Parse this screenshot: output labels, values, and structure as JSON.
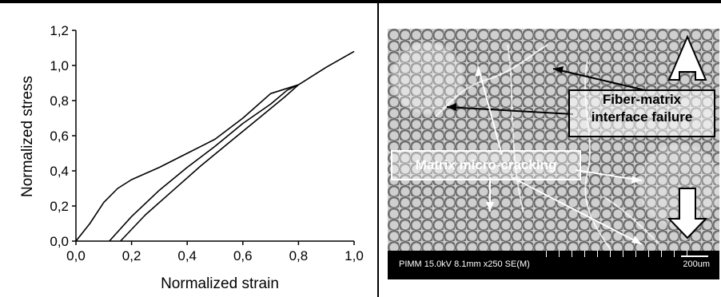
{
  "chart_data": {
    "type": "line",
    "xlabel": "Normalized strain",
    "ylabel": "Normalized stress",
    "xlim": [
      0.0,
      1.0
    ],
    "ylim": [
      0.0,
      1.2
    ],
    "xticks": [
      "0,0",
      "0,2",
      "0,4",
      "0,6",
      "0,8",
      "1,0"
    ],
    "yticks": [
      "0,0",
      "0,2",
      "0,4",
      "0,6",
      "0,8",
      "1,0",
      "1,2"
    ],
    "series": [
      {
        "x": [
          0.0,
          0.05,
          0.1,
          0.15,
          0.2,
          0.3,
          0.4,
          0.5,
          0.6,
          0.7,
          0.8
        ],
        "y": [
          0.0,
          0.1,
          0.22,
          0.3,
          0.35,
          0.42,
          0.5,
          0.58,
          0.7,
          0.84,
          0.89
        ]
      },
      {
        "x": [
          0.12,
          0.2,
          0.3,
          0.4,
          0.5,
          0.6,
          0.7,
          0.76,
          0.8
        ],
        "y": [
          0.0,
          0.14,
          0.29,
          0.42,
          0.54,
          0.67,
          0.78,
          0.86,
          0.89
        ]
      },
      {
        "x": [
          0.16,
          0.25,
          0.35,
          0.45,
          0.55,
          0.65,
          0.75,
          0.8,
          0.85,
          0.9,
          1.0
        ],
        "y": [
          0.0,
          0.15,
          0.29,
          0.43,
          0.56,
          0.69,
          0.82,
          0.89,
          0.94,
          0.99,
          1.08
        ]
      }
    ]
  },
  "micrograph": {
    "info_bar": "PIMM 15.0kV 8.1mm x250 SE(M)",
    "scale_label": "200um",
    "label_interface": "Fiber-matrix interface failure",
    "label_interface_line1": "Fiber-matrix",
    "label_interface_line2": "interface failure",
    "label_cracking": "Matrix micro-cracking"
  }
}
